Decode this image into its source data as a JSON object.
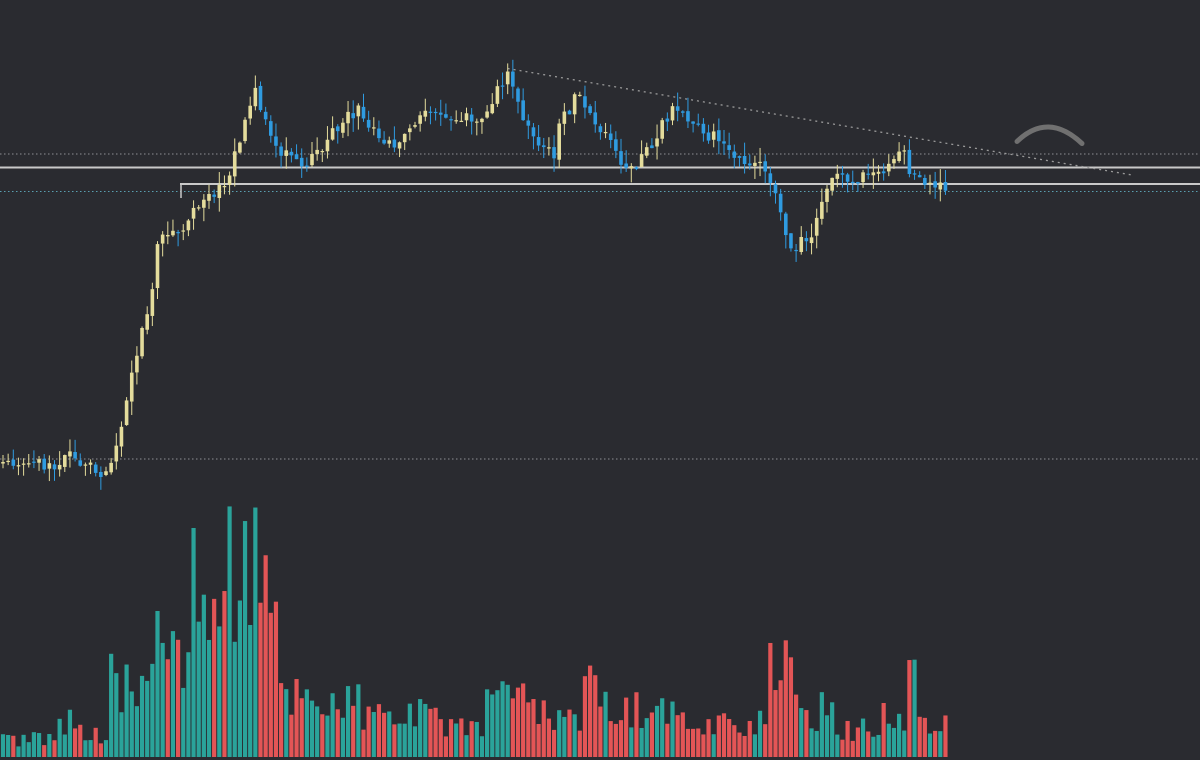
{
  "theme": {
    "background": "#2a2b30",
    "bull_candle": "#e4dc9c",
    "bear_candle": "#2f9be0",
    "vol_up": "#2aa39a",
    "vol_down": "#e35556",
    "level_line": "#c9c9c9",
    "dotted_line": "#8e8f94",
    "cyan_dotted": "#5a9fb0",
    "trend_line": "#9a9a9a",
    "arc_stroke": "#707070"
  },
  "chart_data": {
    "type": "candlestick",
    "grid": false,
    "legend": "none",
    "price_range": [
      0,
      100
    ],
    "seed": 42,
    "segments": [
      {
        "bars": 11,
        "from": 12.6,
        "to": 13.0,
        "vol": 6
      },
      {
        "bars": 3,
        "from": 13.5,
        "to": 15.6,
        "vol": 13
      },
      {
        "bars": 7,
        "from": 14.5,
        "to": 10.5,
        "vol": 8
      },
      {
        "bars": 9,
        "from": 13.0,
        "to": 48.0,
        "vol": 25
      },
      {
        "bars": 7,
        "from": 57.0,
        "to": 62.0,
        "vol": 40
      },
      {
        "bars": 7,
        "from": 65.0,
        "to": 69.0,
        "vol": 55
      },
      {
        "bars": 6,
        "from": 71.0,
        "to": 89.5,
        "vol": 65
      },
      {
        "bars": 4,
        "from": 84.0,
        "to": 76.0,
        "vol": 50
      },
      {
        "bars": 6,
        "from": 75.5,
        "to": 72.0,
        "vol": 22
      },
      {
        "bars": 4,
        "from": 74.5,
        "to": 78.0,
        "vol": 20
      },
      {
        "bars": 6,
        "from": 80.0,
        "to": 84.5,
        "vol": 18
      },
      {
        "bars": 6,
        "from": 82.0,
        "to": 77.0,
        "vol": 14
      },
      {
        "bars": 8,
        "from": 77.5,
        "to": 84.0,
        "vol": 14
      },
      {
        "bars": 6,
        "from": 84.0,
        "to": 82.0,
        "vol": 12
      },
      {
        "bars": 4,
        "from": 82.5,
        "to": 82.0,
        "vol": 10
      },
      {
        "bars": 5,
        "from": 84.0,
        "to": 92.0,
        "vol": 18
      },
      {
        "bars": 4,
        "from": 88.0,
        "to": 80.0,
        "vol": 22
      },
      {
        "bars": 5,
        "from": 79.0,
        "to": 75.0,
        "vol": 14
      },
      {
        "bars": 5,
        "from": 81.0,
        "to": 87.5,
        "vol": 16
      },
      {
        "bars": 6,
        "from": 83.5,
        "to": 79.0,
        "vol": 22
      },
      {
        "bars": 4,
        "from": 75.0,
        "to": 72.5,
        "vol": 14
      },
      {
        "bars": 5,
        "from": 73.0,
        "to": 79.0,
        "vol": 16
      },
      {
        "bars": 4,
        "from": 82.0,
        "to": 84.5,
        "vol": 14
      },
      {
        "bars": 6,
        "from": 83.5,
        "to": 79.0,
        "vol": 12
      },
      {
        "bars": 6,
        "from": 78.5,
        "to": 73.5,
        "vol": 12
      },
      {
        "bars": 5,
        "from": 74.0,
        "to": 72.5,
        "vol": 12
      },
      {
        "bars": 5,
        "from": 70.0,
        "to": 56.0,
        "vol": 28
      },
      {
        "bars": 4,
        "from": 57.0,
        "to": 58.0,
        "vol": 16
      },
      {
        "bars": 4,
        "from": 62.0,
        "to": 70.0,
        "vol": 16
      },
      {
        "bars": 9,
        "from": 70.0,
        "to": 70.5,
        "vol": 9
      },
      {
        "bars": 5,
        "from": 72.0,
        "to": 76.0,
        "vol": 14
      },
      {
        "bars": 3,
        "from": 72.0,
        "to": 69.5,
        "vol": 24
      },
      {
        "bars": 5,
        "from": 70.0,
        "to": 68.5,
        "vol": 10
      }
    ],
    "levels": [
      {
        "value": 72.5,
        "style": "solid"
      },
      {
        "value": 69.2,
        "style": "solid"
      },
      {
        "value": 75.2,
        "style": "dotted"
      },
      {
        "value": 67.7,
        "style": "dotted-cyan"
      },
      {
        "value": 14.2,
        "style": "dotted"
      }
    ],
    "trendline": {
      "from_price": 92.3,
      "to_price": 71.0
    },
    "arc_price": 78.5
  }
}
